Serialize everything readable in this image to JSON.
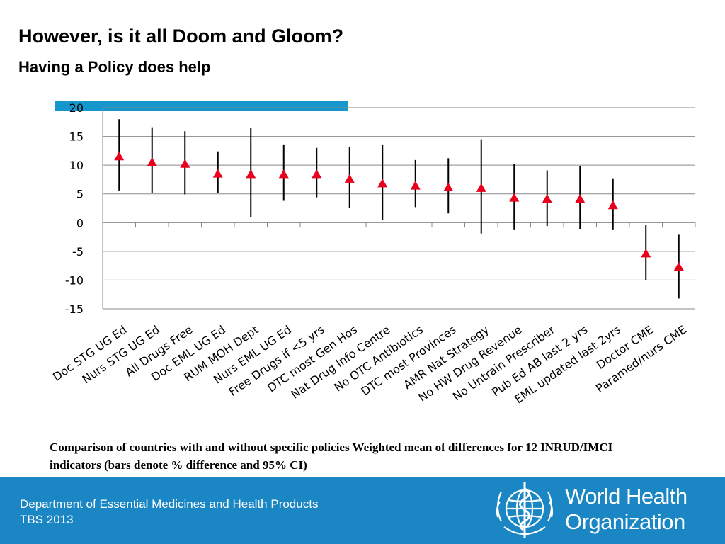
{
  "slide": {
    "title": "However, is it all Doom and Gloom?",
    "subtitle": "Having a Policy does help",
    "caption": "Comparison of countries with and without specific policies Weighted mean of differences for 12 INRUD/IMCI indicators (bars denote % difference and 95% CI)",
    "accent_color": "#1596cc"
  },
  "footer": {
    "department": "Department of Essential Medicines and Health Products",
    "event": "TBS 2013",
    "org_name_line1": "World Health",
    "org_name_line2": "Organization",
    "background_color": "#1b86c4",
    "logo_icon": "who-emblem-icon"
  },
  "chart_data": {
    "type": "scatter",
    "marker": "triangle",
    "marker_color": "#e8001c",
    "errorbar_color": "#000000",
    "ylim": [
      -15,
      20
    ],
    "yticks": [
      20,
      15,
      10,
      5,
      0,
      -5,
      -10,
      -15
    ],
    "grid": true,
    "categories": [
      "Doc STG UG Ed",
      "Nurs STG UG Ed",
      "All Drugs Free",
      "Doc EML UG Ed",
      "RUM MOH Dept",
      "Nurs EML UG Ed",
      "Free Drugs if <5 yrs",
      "DTC most Gen Hos",
      "Nat Drug Info Centre",
      "No OTC Antibiotics",
      "DTC most Provinces",
      "AMR Nat Strategy",
      "No HW Drug Revenue",
      "No Untrain Prescriber",
      "Pub Ed AB last 2 yrs",
      "EML updated last 2yrs",
      "Doctor CME",
      "Paramed/nurs CME"
    ],
    "values": [
      11.5,
      10.5,
      10.2,
      8.5,
      8.4,
      8.4,
      8.4,
      7.6,
      6.8,
      6.4,
      6.1,
      6.0,
      4.3,
      4.1,
      4.1,
      3.0,
      -5.4,
      -7.7
    ],
    "ci_upper": [
      18.0,
      16.6,
      15.9,
      12.4,
      16.5,
      13.6,
      13.0,
      13.1,
      13.6,
      10.9,
      11.2,
      14.5,
      10.2,
      9.1,
      9.8,
      7.7,
      -0.4,
      -2.1
    ],
    "ci_lower": [
      5.6,
      5.2,
      4.9,
      5.2,
      1.0,
      3.8,
      4.4,
      2.5,
      0.5,
      2.7,
      1.6,
      -1.9,
      -1.3,
      -0.6,
      -1.2,
      -1.3,
      -10.0,
      -13.2
    ]
  }
}
